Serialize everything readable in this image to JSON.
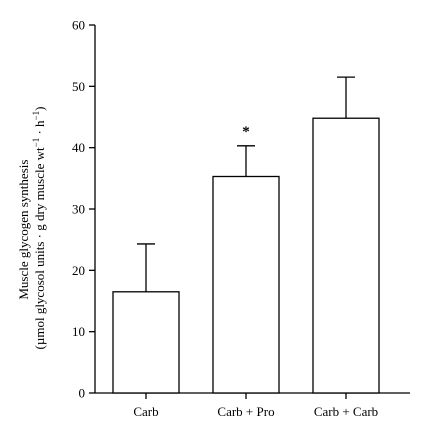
{
  "chart_data": {
    "type": "bar",
    "categories": [
      "Carb",
      "Carb + Pro",
      "Carb + Carb"
    ],
    "values": [
      16.5,
      35.3,
      44.8
    ],
    "error_upper": [
      24.3,
      40.3,
      51.5
    ],
    "annotations": [
      {
        "category": "Carb + Pro",
        "text": "*"
      }
    ],
    "ylabel_line1": "Muscle glycogen synthesis",
    "ylabel_line2_main": "(µmol glycosol units · g dry muscle wt",
    "ylabel_sup1": "−1",
    "ylabel_mid": " · h",
    "ylabel_sup2": "−1",
    "ylabel_end": ")",
    "ylim": [
      0,
      60
    ],
    "yticks": [
      0,
      10,
      20,
      30,
      40,
      50,
      60
    ],
    "xlabel": "",
    "grid": false
  }
}
